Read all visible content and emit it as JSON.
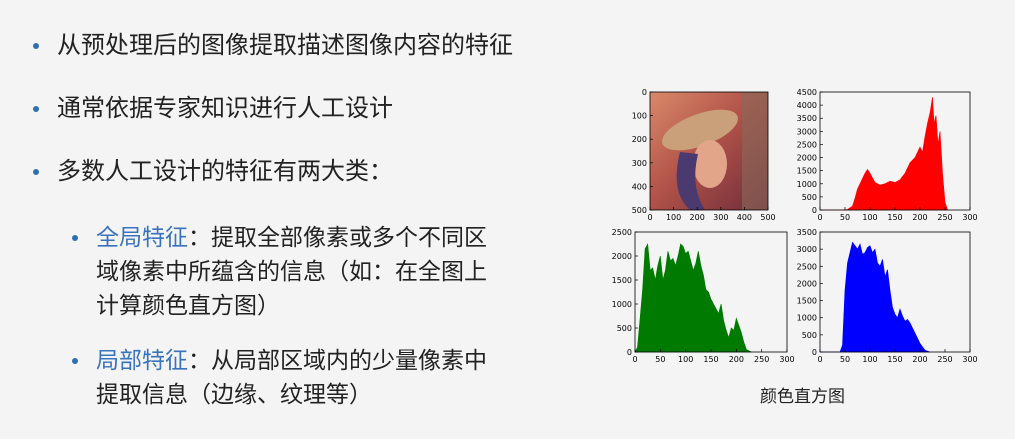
{
  "bullets": [
    "从预处理后的图像提取描述图像内容的特征",
    "通常依据专家知识进行人工设计",
    "多数人工设计的特征有两大类："
  ],
  "sub_bullets": [
    {
      "term": "全局特征",
      "sep": "：",
      "line1": "提取全部像素或多个不同区",
      "line2": "域像素中所蕴含的信息（如：在全图上",
      "line3": "计算颜色直方图）"
    },
    {
      "term": "局部特征",
      "sep": "：",
      "line1": "从局部区域内的少量像素中",
      "line2": "提取信息（边缘、纹理等）"
    }
  ],
  "figure_caption": "颜色直方图",
  "colors": {
    "bullet": "#2f6fb0",
    "accent": "#3a73bd",
    "red": "#ff0000",
    "green": "#007a00",
    "blue": "#0000ff"
  },
  "chart_data": [
    {
      "type": "image",
      "content": "photo (Lena)",
      "xticks": [
        "0",
        "100",
        "200",
        "300",
        "400",
        "500"
      ],
      "yticks": [
        "0",
        "100",
        "200",
        "300",
        "400",
        "500"
      ],
      "xlim": [
        0,
        512
      ],
      "ylim": [
        512,
        0
      ]
    },
    {
      "type": "area",
      "color": "red",
      "xlim": [
        0,
        300
      ],
      "ylim": [
        0,
        4500
      ],
      "xticks": [
        "0",
        "50",
        "100",
        "150",
        "200",
        "250",
        "300"
      ],
      "yticks": [
        "0",
        "500",
        "1000",
        "1500",
        "2000",
        "2500",
        "3000",
        "3500",
        "4000",
        "4500"
      ],
      "x": [
        0,
        40,
        55,
        65,
        70,
        75,
        80,
        85,
        90,
        95,
        100,
        110,
        120,
        130,
        140,
        150,
        160,
        170,
        180,
        190,
        200,
        205,
        210,
        215,
        220,
        225,
        228,
        232,
        236,
        240,
        245,
        250,
        255
      ],
      "values": [
        0,
        0,
        20,
        150,
        450,
        800,
        1000,
        1200,
        1400,
        1550,
        1400,
        1050,
        950,
        1000,
        1100,
        1050,
        1150,
        1400,
        1800,
        2000,
        2400,
        2200,
        2800,
        3300,
        3700,
        4300,
        3300,
        3600,
        2500,
        3000,
        1400,
        300,
        0
      ]
    },
    {
      "type": "area",
      "color": "green",
      "xlim": [
        0,
        300
      ],
      "ylim": [
        0,
        2500
      ],
      "xticks": [
        "0",
        "50",
        "100",
        "150",
        "200",
        "250",
        "300"
      ],
      "yticks": [
        "0",
        "500",
        "1000",
        "1500",
        "2000",
        "2500"
      ],
      "x": [
        0,
        5,
        10,
        15,
        20,
        25,
        30,
        35,
        40,
        45,
        50,
        55,
        60,
        65,
        70,
        75,
        80,
        85,
        90,
        95,
        100,
        105,
        110,
        115,
        120,
        125,
        130,
        135,
        140,
        145,
        150,
        155,
        160,
        165,
        170,
        175,
        180,
        185,
        190,
        195,
        200,
        205,
        210,
        215,
        220,
        230
      ],
      "values": [
        0,
        100,
        700,
        1300,
        2150,
        2250,
        1700,
        1750,
        1500,
        1800,
        2000,
        1500,
        1700,
        2100,
        1900,
        1950,
        1800,
        2000,
        2250,
        2200,
        2050,
        2100,
        1900,
        1700,
        1850,
        2100,
        1800,
        1600,
        1300,
        1250,
        1100,
        1000,
        900,
        800,
        1000,
        650,
        450,
        300,
        500,
        450,
        700,
        550,
        400,
        200,
        50,
        0
      ]
    },
    {
      "type": "area",
      "color": "blue",
      "xlim": [
        0,
        300
      ],
      "ylim": [
        0,
        3500
      ],
      "xticks": [
        "0",
        "50",
        "100",
        "150",
        "200",
        "250",
        "300"
      ],
      "yticks": [
        "0",
        "500",
        "1000",
        "1500",
        "2000",
        "2500",
        "3000",
        "3500"
      ],
      "x": [
        0,
        40,
        45,
        50,
        55,
        60,
        65,
        70,
        75,
        80,
        85,
        90,
        95,
        100,
        105,
        110,
        115,
        120,
        125,
        130,
        135,
        140,
        145,
        150,
        155,
        160,
        165,
        170,
        175,
        180,
        185,
        190,
        195,
        200,
        210,
        220
      ],
      "values": [
        0,
        0,
        200,
        1800,
        2600,
        2900,
        3200,
        3100,
        3000,
        3150,
        2850,
        2900,
        3050,
        3100,
        2900,
        3000,
        2600,
        2500,
        2700,
        2200,
        2400,
        1800,
        1300,
        1100,
        1000,
        1250,
        1050,
        900,
        950,
        850,
        700,
        550,
        400,
        250,
        50,
        0
      ]
    }
  ]
}
